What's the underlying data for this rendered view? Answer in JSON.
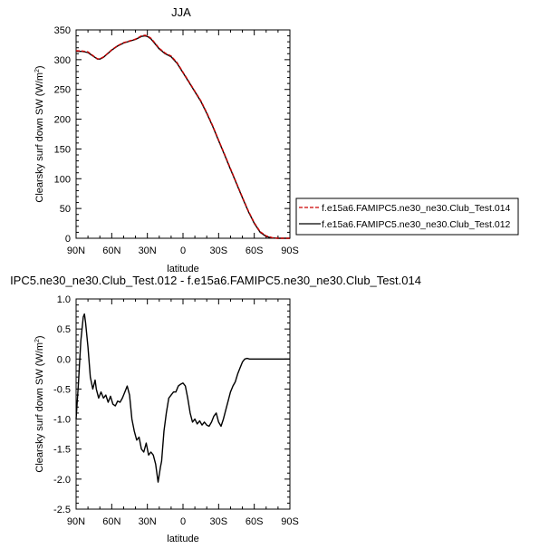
{
  "chart_data": [
    {
      "type": "line",
      "title": "JJA",
      "xlabel": "latitude",
      "ylabel": "Clearsky surf down SW (W/m",
      "ylabel_sup": "2",
      "ylabel_close": ")",
      "xlim": [
        90,
        -90
      ],
      "ylim": [
        0,
        350
      ],
      "xticks": [
        90,
        60,
        30,
        0,
        -30,
        -60,
        -90
      ],
      "xtick_labels": [
        "90N",
        "60N",
        "30N",
        "0",
        "30S",
        "60S",
        "90S"
      ],
      "yticks": [
        0,
        50,
        100,
        150,
        200,
        250,
        300,
        350
      ],
      "ytick_labels": [
        "0",
        "50",
        "100",
        "150",
        "200",
        "250",
        "300",
        "350"
      ],
      "legend": {
        "placement": "right",
        "entries": [
          {
            "name": "f.e15a6.FAMIPC5.ne30_ne30.Club_Test.014",
            "color": "#cc0000",
            "dash": "dashed"
          },
          {
            "name": "f.e15a6.FAMIPC5.ne30_ne30.Club_Test.012",
            "color": "#000000",
            "dash": "solid"
          }
        ]
      },
      "series": [
        {
          "name": "f.e15a6.FAMIPC5.ne30_ne30.Club_Test.012",
          "color": "#000000",
          "x": [
            90,
            85,
            80,
            75,
            72,
            70,
            67,
            64,
            60,
            55,
            50,
            45,
            40,
            35,
            32,
            30,
            27,
            24,
            20,
            15,
            10,
            5,
            0,
            -5,
            -10,
            -15,
            -20,
            -25,
            -30,
            -35,
            -40,
            -45,
            -50,
            -55,
            -60,
            -65,
            -70,
            -75,
            -80,
            -85,
            -90
          ],
          "y": [
            314,
            314,
            312,
            305,
            301,
            301,
            304,
            309,
            316,
            323,
            328,
            331,
            334,
            339,
            340,
            339,
            335,
            328,
            318,
            310,
            305,
            294,
            278,
            262,
            246,
            230,
            210,
            188,
            164,
            140,
            116,
            92,
            68,
            45,
            25,
            10,
            3,
            0.5,
            0,
            0,
            0
          ]
        },
        {
          "name": "f.e15a6.FAMIPC5.ne30_ne30.Club_Test.014",
          "color": "#cc0000",
          "x": [
            90,
            85,
            80,
            75,
            72,
            70,
            67,
            64,
            60,
            55,
            50,
            45,
            40,
            35,
            32,
            30,
            27,
            24,
            20,
            15,
            10,
            5,
            0,
            -5,
            -10,
            -15,
            -20,
            -25,
            -30,
            -35,
            -40,
            -45,
            -50,
            -55,
            -60,
            -65,
            -70,
            -75,
            -80,
            -85,
            -90
          ],
          "y": [
            315,
            314.5,
            313,
            305.5,
            301.5,
            301.5,
            304.5,
            309.5,
            316.5,
            323.5,
            328.5,
            331.5,
            334.5,
            340,
            341,
            340,
            336,
            329,
            319,
            311,
            306,
            295,
            279,
            263,
            247,
            231,
            211,
            189,
            165,
            141,
            117,
            93,
            69,
            46,
            26,
            11,
            4,
            1,
            0,
            0,
            0
          ]
        }
      ]
    },
    {
      "type": "line",
      "title": "IPC5.ne30_ne30.Club_Test.012 - f.e15a6.FAMIPC5.ne30_ne30.Club_Test.014",
      "xlabel": "latitude",
      "ylabel": "Clearsky surf down SW (W/m",
      "ylabel_sup": "2",
      "ylabel_close": ")",
      "xlim": [
        90,
        -90
      ],
      "ylim": [
        -2.5,
        1.0
      ],
      "xticks": [
        90,
        60,
        30,
        0,
        -30,
        -60,
        -90
      ],
      "xtick_labels": [
        "90N",
        "60N",
        "30N",
        "0",
        "30S",
        "60S",
        "90S"
      ],
      "yticks": [
        -2.5,
        -2.0,
        -1.5,
        -1.0,
        -0.5,
        0.0,
        0.5,
        1.0
      ],
      "ytick_labels": [
        "-2.5",
        "-2.0",
        "-1.5",
        "-1.0",
        "-0.5",
        "0.0",
        "0.5",
        "1.0"
      ],
      "series": [
        {
          "name": "",
          "color": "#000000",
          "x": [
            90,
            88,
            86,
            84,
            83,
            82,
            80,
            78,
            76,
            74,
            73,
            71,
            69,
            67,
            65,
            63,
            61,
            59,
            57,
            55,
            53,
            51,
            49,
            47,
            45,
            43,
            41,
            39,
            37,
            35,
            33,
            31,
            29,
            27,
            25,
            23,
            21,
            19,
            18,
            16,
            14,
            12,
            10,
            8,
            6,
            4,
            2,
            0,
            -2,
            -4,
            -6,
            -8,
            -10,
            -12,
            -14,
            -16,
            -18,
            -20,
            -22,
            -24,
            -26,
            -28,
            -30,
            -32,
            -34,
            -36,
            -38,
            -40,
            -42,
            -44,
            -46,
            -48,
            -50,
            -52,
            -54,
            -56,
            -58,
            -60,
            -62,
            -64,
            -66,
            -68,
            -70,
            -72,
            -75,
            -80,
            -85,
            -90
          ],
          "y": [
            -1.0,
            -0.4,
            0.3,
            0.7,
            0.75,
            0.6,
            0.2,
            -0.3,
            -0.5,
            -0.35,
            -0.5,
            -0.65,
            -0.55,
            -0.65,
            -0.6,
            -0.72,
            -0.62,
            -0.75,
            -0.78,
            -0.7,
            -0.72,
            -0.65,
            -0.55,
            -0.45,
            -0.6,
            -1.0,
            -1.2,
            -1.35,
            -1.3,
            -1.5,
            -1.55,
            -1.4,
            -1.6,
            -1.55,
            -1.6,
            -1.75,
            -2.05,
            -1.8,
            -1.7,
            -1.2,
            -0.9,
            -0.65,
            -0.6,
            -0.55,
            -0.55,
            -0.45,
            -0.42,
            -0.4,
            -0.45,
            -0.65,
            -0.9,
            -1.05,
            -1.0,
            -1.08,
            -1.03,
            -1.1,
            -1.05,
            -1.1,
            -1.12,
            -1.05,
            -0.95,
            -0.9,
            -1.05,
            -1.12,
            -1.0,
            -0.85,
            -0.7,
            -0.55,
            -0.45,
            -0.38,
            -0.25,
            -0.15,
            -0.05,
            0.0,
            0.01,
            0.0,
            0.0,
            0.0,
            0.0,
            0.0,
            0.0,
            0.0,
            0.0,
            0.0,
            0.0,
            0.0,
            0.0,
            0.0
          ]
        }
      ]
    }
  ]
}
